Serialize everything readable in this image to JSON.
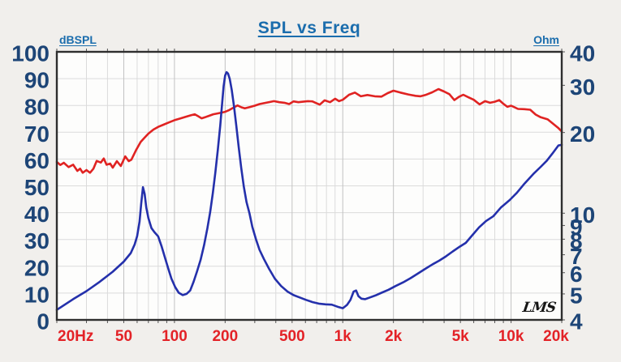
{
  "chart_data": {
    "type": "line",
    "title": "SPL vs Freq",
    "watermark": "LMS",
    "x_axis": {
      "scale": "log",
      "min": 20,
      "max": 20000,
      "labeled_ticks": [
        {
          "f": 20,
          "label": "20Hz"
        },
        {
          "f": 50,
          "label": "50"
        },
        {
          "f": 100,
          "label": "100"
        },
        {
          "f": 200,
          "label": "200"
        },
        {
          "f": 500,
          "label": "500"
        },
        {
          "f": 1000,
          "label": "1k"
        },
        {
          "f": 2000,
          "label": "2k"
        },
        {
          "f": 5000,
          "label": "5k"
        },
        {
          "f": 10000,
          "label": "10k"
        },
        {
          "f": 20000,
          "label": "20k"
        }
      ],
      "minor_ticks": [
        20,
        30,
        40,
        50,
        60,
        70,
        80,
        90,
        100,
        200,
        300,
        400,
        500,
        600,
        700,
        800,
        900,
        1000,
        2000,
        3000,
        4000,
        5000,
        6000,
        7000,
        8000,
        9000,
        10000,
        20000
      ]
    },
    "left_axis": {
      "unit": "dBSPL",
      "min": 0,
      "max": 100,
      "ticks": [
        100,
        90,
        80,
        70,
        60,
        50,
        40,
        30,
        20,
        10,
        0
      ]
    },
    "right_axis": {
      "unit": "Ohm",
      "scale": "log",
      "min": 4,
      "max": 40,
      "ticks": [
        40,
        30,
        20,
        10,
        9,
        8,
        7,
        6,
        5,
        4
      ]
    },
    "series": [
      {
        "name": "SPL",
        "axis": "left",
        "color": "#e02322",
        "points": [
          [
            20,
            58.9
          ],
          [
            21,
            57.8
          ],
          [
            22,
            58.6
          ],
          [
            23.5,
            57.0
          ],
          [
            25,
            57.9
          ],
          [
            26.5,
            55.6
          ],
          [
            27.5,
            56.4
          ],
          [
            28.5,
            54.9
          ],
          [
            30,
            55.9
          ],
          [
            31.5,
            54.9
          ],
          [
            33,
            56.4
          ],
          [
            34.5,
            59.3
          ],
          [
            36.5,
            58.7
          ],
          [
            38,
            60.2
          ],
          [
            39.5,
            57.9
          ],
          [
            41.5,
            58.3
          ],
          [
            43,
            56.8
          ],
          [
            45.5,
            59.2
          ],
          [
            48,
            57.4
          ],
          [
            51,
            61.0
          ],
          [
            53.5,
            59.2
          ],
          [
            55.5,
            59.8
          ],
          [
            59,
            63.2
          ],
          [
            63,
            66.4
          ],
          [
            66,
            67.8
          ],
          [
            70,
            69.5
          ],
          [
            75,
            71.0
          ],
          [
            80,
            72.0
          ],
          [
            86,
            72.8
          ],
          [
            92,
            73.6
          ],
          [
            100,
            74.5
          ],
          [
            108,
            75.1
          ],
          [
            116,
            75.7
          ],
          [
            125,
            76.3
          ],
          [
            132,
            76.7
          ],
          [
            138,
            76.0
          ],
          [
            145,
            75.2
          ],
          [
            152,
            75.6
          ],
          [
            160,
            76.1
          ],
          [
            170,
            76.7
          ],
          [
            180,
            77.0
          ],
          [
            190,
            77.3
          ],
          [
            200,
            77.6
          ],
          [
            212,
            78.3
          ],
          [
            225,
            79.2
          ],
          [
            237,
            80.0
          ],
          [
            250,
            79.3
          ],
          [
            262,
            78.9
          ],
          [
            280,
            79.4
          ],
          [
            300,
            79.9
          ],
          [
            320,
            80.5
          ],
          [
            350,
            81.0
          ],
          [
            370,
            81.3
          ],
          [
            390,
            81.6
          ],
          [
            420,
            81.2
          ],
          [
            450,
            81.0
          ],
          [
            480,
            80.5
          ],
          [
            510,
            81.5
          ],
          [
            545,
            81.2
          ],
          [
            580,
            81.4
          ],
          [
            620,
            81.6
          ],
          [
            660,
            81.5
          ],
          [
            700,
            80.8
          ],
          [
            730,
            80.3
          ],
          [
            780,
            81.9
          ],
          [
            840,
            81.2
          ],
          [
            900,
            82.5
          ],
          [
            950,
            81.6
          ],
          [
            1000,
            82.1
          ],
          [
            1090,
            84.0
          ],
          [
            1180,
            84.8
          ],
          [
            1280,
            83.4
          ],
          [
            1400,
            83.9
          ],
          [
            1550,
            83.4
          ],
          [
            1700,
            83.3
          ],
          [
            1850,
            84.6
          ],
          [
            2000,
            85.5
          ],
          [
            2200,
            84.8
          ],
          [
            2450,
            84.1
          ],
          [
            2700,
            83.6
          ],
          [
            2900,
            83.4
          ],
          [
            3100,
            83.9
          ],
          [
            3400,
            84.9
          ],
          [
            3700,
            86.1
          ],
          [
            4000,
            85.2
          ],
          [
            4300,
            84.2
          ],
          [
            4600,
            82.0
          ],
          [
            4900,
            83.2
          ],
          [
            5200,
            84.0
          ],
          [
            5600,
            83.0
          ],
          [
            6000,
            82.1
          ],
          [
            6500,
            80.4
          ],
          [
            7000,
            81.6
          ],
          [
            7500,
            81.0
          ],
          [
            8000,
            81.4
          ],
          [
            8500,
            82.0
          ],
          [
            9000,
            80.6
          ],
          [
            9500,
            79.5
          ],
          [
            10000,
            79.9
          ],
          [
            11000,
            78.7
          ],
          [
            12000,
            78.6
          ],
          [
            13000,
            78.4
          ],
          [
            14000,
            76.6
          ],
          [
            15000,
            75.6
          ],
          [
            16500,
            74.8
          ],
          [
            18000,
            72.9
          ],
          [
            19000,
            71.7
          ],
          [
            20000,
            70.3
          ]
        ]
      },
      {
        "name": "Impedance",
        "axis": "right",
        "color": "#2430ab",
        "points": [
          [
            20,
            4.36
          ],
          [
            25,
            4.78
          ],
          [
            30,
            5.12
          ],
          [
            36,
            5.55
          ],
          [
            43,
            6.05
          ],
          [
            50,
            6.6
          ],
          [
            55,
            7.1
          ],
          [
            58,
            7.65
          ],
          [
            60,
            8.2
          ],
          [
            62,
            9.3
          ],
          [
            63.5,
            10.9
          ],
          [
            65,
            12.5
          ],
          [
            66.5,
            11.8
          ],
          [
            68,
            10.5
          ],
          [
            70,
            9.6
          ],
          [
            73,
            8.8
          ],
          [
            76,
            8.5
          ],
          [
            80,
            8.2
          ],
          [
            84,
            7.5
          ],
          [
            88,
            6.8
          ],
          [
            92,
            6.2
          ],
          [
            96,
            5.7
          ],
          [
            101,
            5.3
          ],
          [
            106,
            5.05
          ],
          [
            112,
            4.95
          ],
          [
            118,
            5.0
          ],
          [
            124,
            5.15
          ],
          [
            130,
            5.55
          ],
          [
            136,
            6.05
          ],
          [
            143,
            6.7
          ],
          [
            150,
            7.6
          ],
          [
            157,
            8.8
          ],
          [
            163,
            10.1
          ],
          [
            169,
            11.9
          ],
          [
            175,
            14.2
          ],
          [
            181,
            17.2
          ],
          [
            187,
            21.2
          ],
          [
            192,
            25.8
          ],
          [
            196,
            29.8
          ],
          [
            200,
            32.6
          ],
          [
            204,
            33.6
          ],
          [
            208,
            33.2
          ],
          [
            213,
            31.7
          ],
          [
            219,
            28.8
          ],
          [
            226,
            25.0
          ],
          [
            233,
            21.2
          ],
          [
            241,
            17.6
          ],
          [
            249,
            14.8
          ],
          [
            258,
            12.6
          ],
          [
            268,
            11.0
          ],
          [
            279,
            10.0
          ],
          [
            290,
            8.9
          ],
          [
            305,
            8.0
          ],
          [
            320,
            7.3
          ],
          [
            340,
            6.75
          ],
          [
            365,
            6.2
          ],
          [
            395,
            5.7
          ],
          [
            430,
            5.35
          ],
          [
            470,
            5.1
          ],
          [
            510,
            4.95
          ],
          [
            555,
            4.85
          ],
          [
            605,
            4.75
          ],
          [
            660,
            4.66
          ],
          [
            720,
            4.6
          ],
          [
            790,
            4.57
          ],
          [
            860,
            4.56
          ],
          [
            930,
            4.48
          ],
          [
            1000,
            4.42
          ],
          [
            1060,
            4.55
          ],
          [
            1110,
            4.75
          ],
          [
            1160,
            5.1
          ],
          [
            1200,
            5.15
          ],
          [
            1240,
            4.9
          ],
          [
            1290,
            4.8
          ],
          [
            1360,
            4.78
          ],
          [
            1450,
            4.85
          ],
          [
            1560,
            4.93
          ],
          [
            1700,
            5.05
          ],
          [
            1870,
            5.18
          ],
          [
            2060,
            5.35
          ],
          [
            2280,
            5.52
          ],
          [
            2520,
            5.72
          ],
          [
            2790,
            5.95
          ],
          [
            3090,
            6.2
          ],
          [
            3420,
            6.45
          ],
          [
            3740,
            6.65
          ],
          [
            4100,
            6.9
          ],
          [
            4500,
            7.2
          ],
          [
            4950,
            7.5
          ],
          [
            5380,
            7.75
          ],
          [
            5900,
            8.3
          ],
          [
            6450,
            8.85
          ],
          [
            7100,
            9.35
          ],
          [
            7850,
            9.75
          ],
          [
            8700,
            10.5
          ],
          [
            9810,
            11.2
          ],
          [
            10800,
            11.9
          ],
          [
            11900,
            12.8
          ],
          [
            13700,
            14.1
          ],
          [
            15000,
            14.9
          ],
          [
            16300,
            15.7
          ],
          [
            17600,
            16.7
          ],
          [
            19100,
            17.9
          ],
          [
            20000,
            18.0
          ]
        ]
      }
    ],
    "layout_hints": {
      "grid": "on",
      "legend": "none"
    },
    "colors": {
      "title": "#1b6dad",
      "axis_number_labels": "#1d4577",
      "x_labels": "#e32227",
      "grid_minor": "#dbdbdb",
      "grid_major": "#c2c2c2",
      "frame": "#2e2e2e",
      "tick_nub": "#555555",
      "plot_bg": "#fdfdfc",
      "page_bg": "#f1efec",
      "spl_curve": "#e02322",
      "impedance_curve": "#2430ab"
    }
  }
}
